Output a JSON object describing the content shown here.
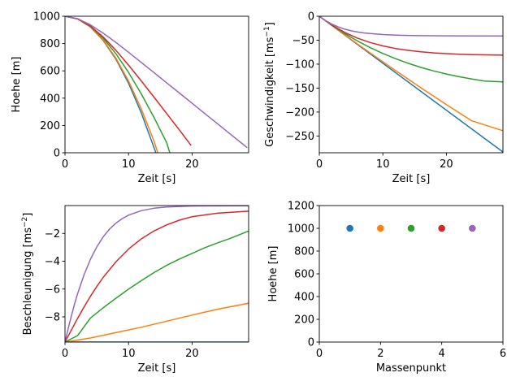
{
  "colors": {
    "C0": "#1f77b4",
    "C1": "#ff7f0e",
    "C2": "#2ca02c",
    "C3": "#d62728",
    "C4": "#9467bd"
  },
  "chart_data": [
    {
      "type": "line",
      "title": "",
      "xlabel": "Zeit [s]",
      "ylabel": "Hoehe [m]",
      "xlim": [
        0,
        28.9
      ],
      "ylim": [
        0,
        1000
      ],
      "xticks": [
        0,
        10,
        20
      ],
      "yticks": [
        0,
        200,
        400,
        600,
        800,
        1000
      ],
      "legend": null,
      "series": [
        {
          "color": "C0",
          "x": [
            0,
            2,
            4,
            6,
            8,
            10,
            12,
            14,
            14.3
          ],
          "y": [
            1000,
            980.4,
            921.5,
            823.4,
            686.1,
            509.5,
            293.7,
            38.6,
            0
          ]
        },
        {
          "color": "C1",
          "x": [
            0,
            2,
            4,
            6,
            8,
            10,
            12,
            14,
            14.6
          ],
          "y": [
            1000,
            980.5,
            922.6,
            826.8,
            694.2,
            525.8,
            322.5,
            85.9,
            0
          ]
        },
        {
          "color": "C2",
          "x": [
            0,
            2,
            4,
            6,
            8,
            10,
            12,
            14,
            16,
            16.5
          ],
          "y": [
            1000,
            980.9,
            926.0,
            839.8,
            726.0,
            588.8,
            432.0,
            259.4,
            73.9,
            0
          ]
        },
        {
          "color": "C3",
          "x": [
            0,
            2,
            4,
            6,
            8,
            10,
            12,
            14,
            16,
            18,
            19.8
          ],
          "y": [
            1000,
            981.1,
            928.2,
            848.8,
            751.2,
            642.1,
            526.5,
            407.7,
            287.6,
            167.0,
            56.5
          ]
        },
        {
          "color": "C4",
          "x": [
            0,
            2,
            4,
            6,
            8,
            10,
            12,
            14,
            16,
            18,
            20,
            22,
            24,
            26,
            28,
            28.6
          ],
          "y": [
            1000,
            981.9,
            936.7,
            876.5,
            808.3,
            736.2,
            662.1,
            587.5,
            512.6,
            437.6,
            362.6,
            287.6,
            212.6,
            137.6,
            62.6,
            40.0
          ]
        }
      ]
    },
    {
      "type": "line",
      "title": "",
      "xlabel": "Zeit [s]",
      "ylabel": "Geschwindigkeit [ms",
      "ylabel_sup": "−1",
      "ylabel_end": "]",
      "xlim": [
        0,
        28.9
      ],
      "ylim": [
        -285,
        0
      ],
      "xticks": [
        0,
        10,
        20
      ],
      "yticks": [
        0,
        -50,
        -100,
        -150,
        -200,
        -250
      ],
      "legend": null,
      "series": [
        {
          "color": "C0",
          "x": [
            0,
            28.9
          ],
          "y": [
            0,
            -283.5
          ]
        },
        {
          "color": "C1",
          "x": [
            0,
            4,
            8,
            12,
            16,
            20,
            24,
            28.9
          ],
          "y": [
            0,
            -38.7,
            -76.6,
            -113.5,
            -149.5,
            -184.4,
            -218.4,
            -239
          ]
        },
        {
          "color": "C2",
          "x": [
            0,
            2,
            4,
            6,
            8,
            10,
            12,
            14,
            16,
            18,
            20,
            22,
            24,
            26,
            28.9
          ],
          "y": [
            0,
            -19.0,
            -36.2,
            -51.6,
            -65.4,
            -77.7,
            -88.6,
            -98.3,
            -106.8,
            -114.2,
            -120.6,
            -126.2,
            -131.0,
            -135.2,
            -137
          ]
        },
        {
          "color": "C3",
          "x": [
            0,
            2,
            4,
            6,
            8,
            10,
            12,
            14,
            16,
            18,
            20,
            22,
            24,
            26,
            28.9
          ],
          "y": [
            0,
            -18.6,
            -33.7,
            -45.6,
            -54.8,
            -61.9,
            -67.3,
            -71.3,
            -74.3,
            -76.5,
            -78.1,
            -79.2,
            -80.0,
            -80.6,
            -81.2
          ]
        },
        {
          "color": "C4",
          "x": [
            0,
            1,
            2,
            3,
            4,
            5,
            6,
            7,
            8,
            10,
            12,
            14,
            16,
            20,
            24,
            28.9
          ],
          "y": [
            0,
            -9.2,
            -16.6,
            -22.4,
            -26.9,
            -30.3,
            -32.9,
            -34.8,
            -36.1,
            -38.2,
            -39.4,
            -40.1,
            -40.5,
            -40.9,
            -41.0,
            -41.0
          ]
        }
      ]
    },
    {
      "type": "line",
      "title": "",
      "xlabel": "Zeit [s]",
      "ylabel": "Beschleunigung [ms",
      "ylabel_sup": "−2",
      "ylabel_end": "]",
      "xlim": [
        0,
        28.9
      ],
      "ylim": [
        -9.81,
        0
      ],
      "xticks": [
        0,
        10,
        20
      ],
      "yticks": [
        -2,
        -4,
        -6,
        -8
      ],
      "legend": null,
      "series": [
        {
          "color": "C0",
          "x": [
            0,
            28.9
          ],
          "y": [
            -9.81,
            -9.81
          ]
        },
        {
          "color": "C1",
          "x": [
            0,
            4,
            8,
            12,
            16,
            20,
            24,
            28.9
          ],
          "y": [
            -9.81,
            -9.52,
            -9.13,
            -8.75,
            -8.31,
            -7.87,
            -7.45,
            -7.02
          ]
        },
        {
          "color": "C2",
          "x": [
            0,
            2,
            4,
            6,
            8,
            10,
            12,
            14,
            16,
            18,
            20,
            22,
            24,
            26,
            28.9
          ],
          "y": [
            -9.81,
            -9.34,
            -8.08,
            -7.35,
            -6.66,
            -6.01,
            -5.4,
            -4.82,
            -4.3,
            -3.84,
            -3.44,
            -3.03,
            -2.68,
            -2.36,
            -1.83
          ]
        },
        {
          "color": "C3",
          "x": [
            0,
            1,
            2,
            3,
            4,
            5,
            6,
            8,
            10,
            12,
            14,
            16,
            18,
            20,
            24,
            28.9
          ],
          "y": [
            -9.81,
            -8.95,
            -8.1,
            -7.28,
            -6.52,
            -5.82,
            -5.17,
            -4.05,
            -3.13,
            -2.4,
            -1.83,
            -1.39,
            -1.05,
            -0.8,
            -0.55,
            -0.4
          ]
        },
        {
          "color": "C4",
          "x": [
            0,
            0.5,
            1,
            1.5,
            2,
            3,
            4,
            5,
            6,
            7,
            8,
            9,
            10,
            12,
            14,
            16,
            20,
            28.9
          ],
          "y": [
            -9.81,
            -8.84,
            -7.95,
            -7.09,
            -6.32,
            -4.97,
            -3.86,
            -2.97,
            -2.26,
            -1.7,
            -1.27,
            -0.94,
            -0.69,
            -0.37,
            -0.19,
            -0.1,
            -0.03,
            -0.01
          ]
        }
      ]
    },
    {
      "type": "scatter",
      "title": "",
      "xlabel": "Massenpunkt",
      "ylabel": "Hoehe [m]",
      "xlim": [
        0,
        6
      ],
      "ylim": [
        0,
        1200
      ],
      "xticks": [
        0,
        2,
        4,
        6
      ],
      "yticks": [
        0,
        200,
        400,
        600,
        800,
        1000,
        1200
      ],
      "legend": null,
      "points": [
        {
          "color": "C0",
          "x": 1,
          "y": 1000
        },
        {
          "color": "C1",
          "x": 2,
          "y": 1000
        },
        {
          "color": "C2",
          "x": 3,
          "y": 1000
        },
        {
          "color": "C3",
          "x": 4,
          "y": 1000
        },
        {
          "color": "C4",
          "x": 5,
          "y": 1000
        }
      ]
    }
  ]
}
